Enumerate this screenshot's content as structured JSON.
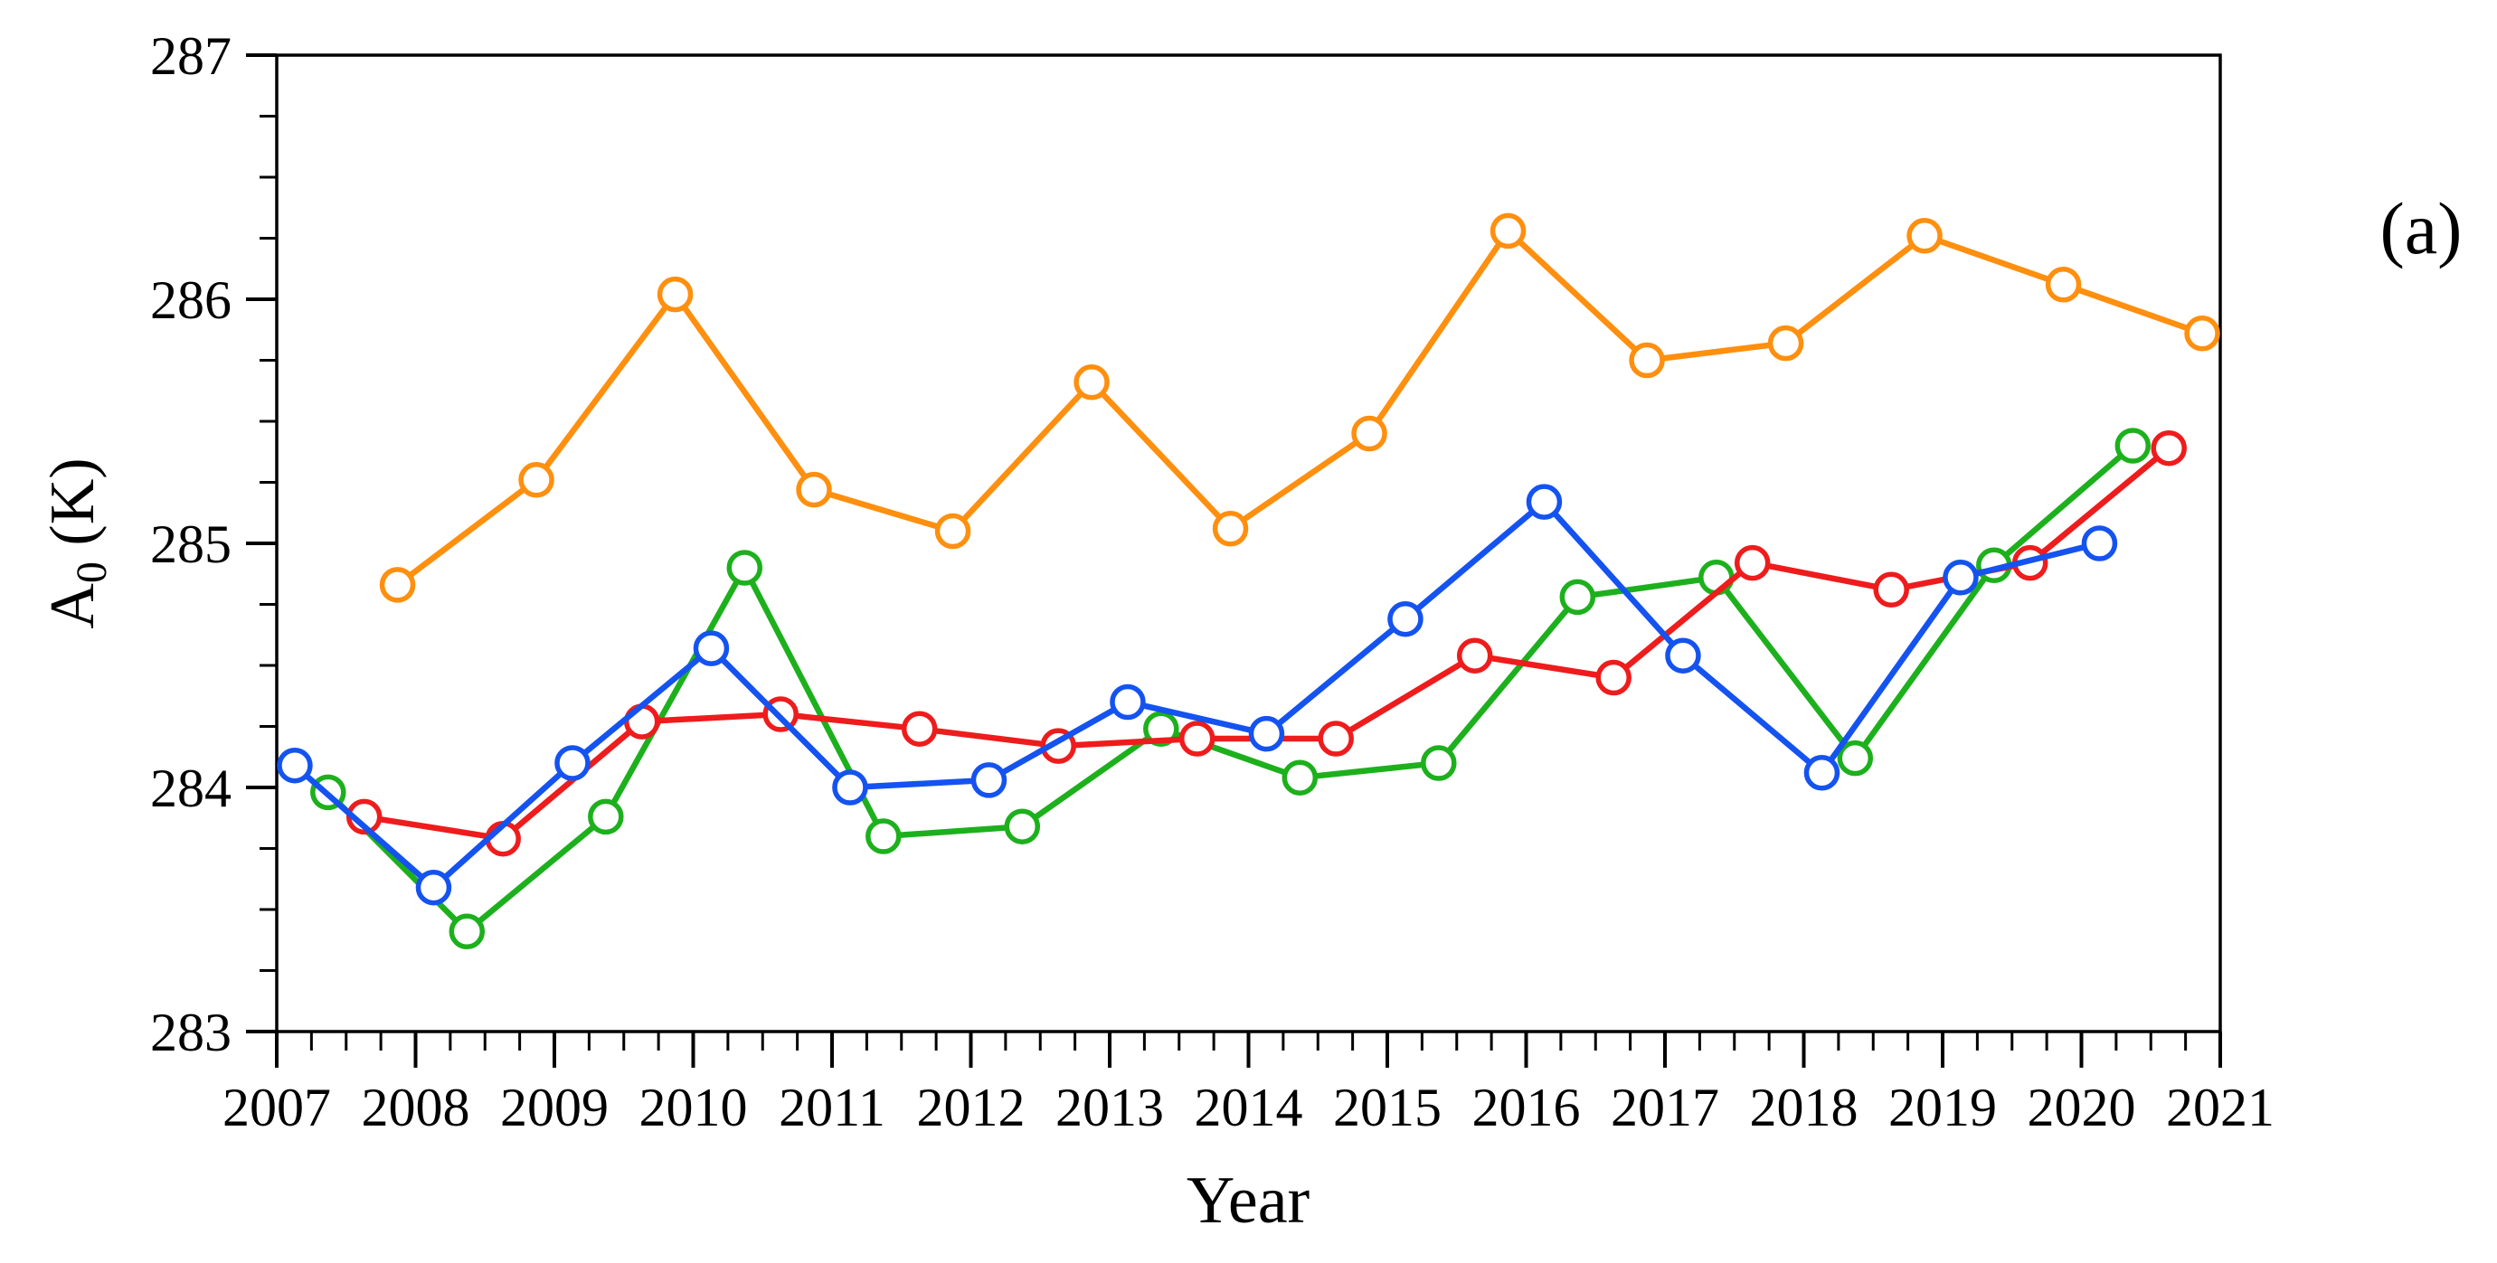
{
  "labels": {
    "panel": "(a)",
    "xlabel": "Year",
    "ylabel_base": "A",
    "ylabel_sub": "0",
    "ylabel_rest": " (K)"
  },
  "chart_data": {
    "type": "line",
    "title": "",
    "xlabel": "Year",
    "ylabel": "A0 (K)",
    "panel_label": "(a)",
    "grid": false,
    "legend": "none",
    "marker": "open-circle",
    "x_range": [
      2007,
      2021
    ],
    "ylim": [
      283,
      287
    ],
    "x_major_ticks": [
      2007,
      2008,
      2009,
      2010,
      2011,
      2012,
      2013,
      2014,
      2015,
      2016,
      2017,
      2018,
      2019,
      2020,
      2021
    ],
    "y_major_ticks": [
      283,
      284,
      285,
      286,
      287
    ],
    "x_minor_step": 0.25,
    "y_minor_step": 0.25,
    "categories": [
      2007,
      2008,
      2009,
      2010,
      2011,
      2012,
      2013,
      2014,
      2015,
      2016,
      2017,
      2018,
      2019,
      2020
    ],
    "series": [
      {
        "name": "green",
        "color": "#1db01d",
        "x_offset": 0.37,
        "values": [
          283.98,
          283.41,
          283.88,
          284.9,
          283.8,
          283.84,
          284.24,
          284.04,
          284.1,
          284.78,
          284.86,
          284.12,
          284.91,
          285.4
        ]
      },
      {
        "name": "red",
        "color": "#ee1c1c",
        "x_offset": 0.63,
        "values": [
          283.88,
          283.79,
          284.27,
          284.3,
          284.24,
          284.17,
          284.2,
          284.2,
          284.54,
          284.45,
          284.92,
          284.81,
          284.92,
          285.39
        ]
      },
      {
        "name": "blue",
        "color": "#1453f0",
        "x_offset": 0.13,
        "values": [
          284.09,
          283.59,
          284.1,
          284.57,
          284.0,
          284.03,
          284.35,
          284.22,
          284.69,
          285.17,
          284.54,
          284.06,
          284.86,
          285.0
        ]
      },
      {
        "name": "orange",
        "color": "#ff8f0e",
        "x_offset": 0.87,
        "values": [
          284.83,
          285.26,
          286.02,
          285.22,
          285.05,
          285.66,
          285.06,
          285.45,
          286.28,
          285.75,
          285.82,
          286.26,
          286.06,
          285.86
        ]
      }
    ]
  }
}
